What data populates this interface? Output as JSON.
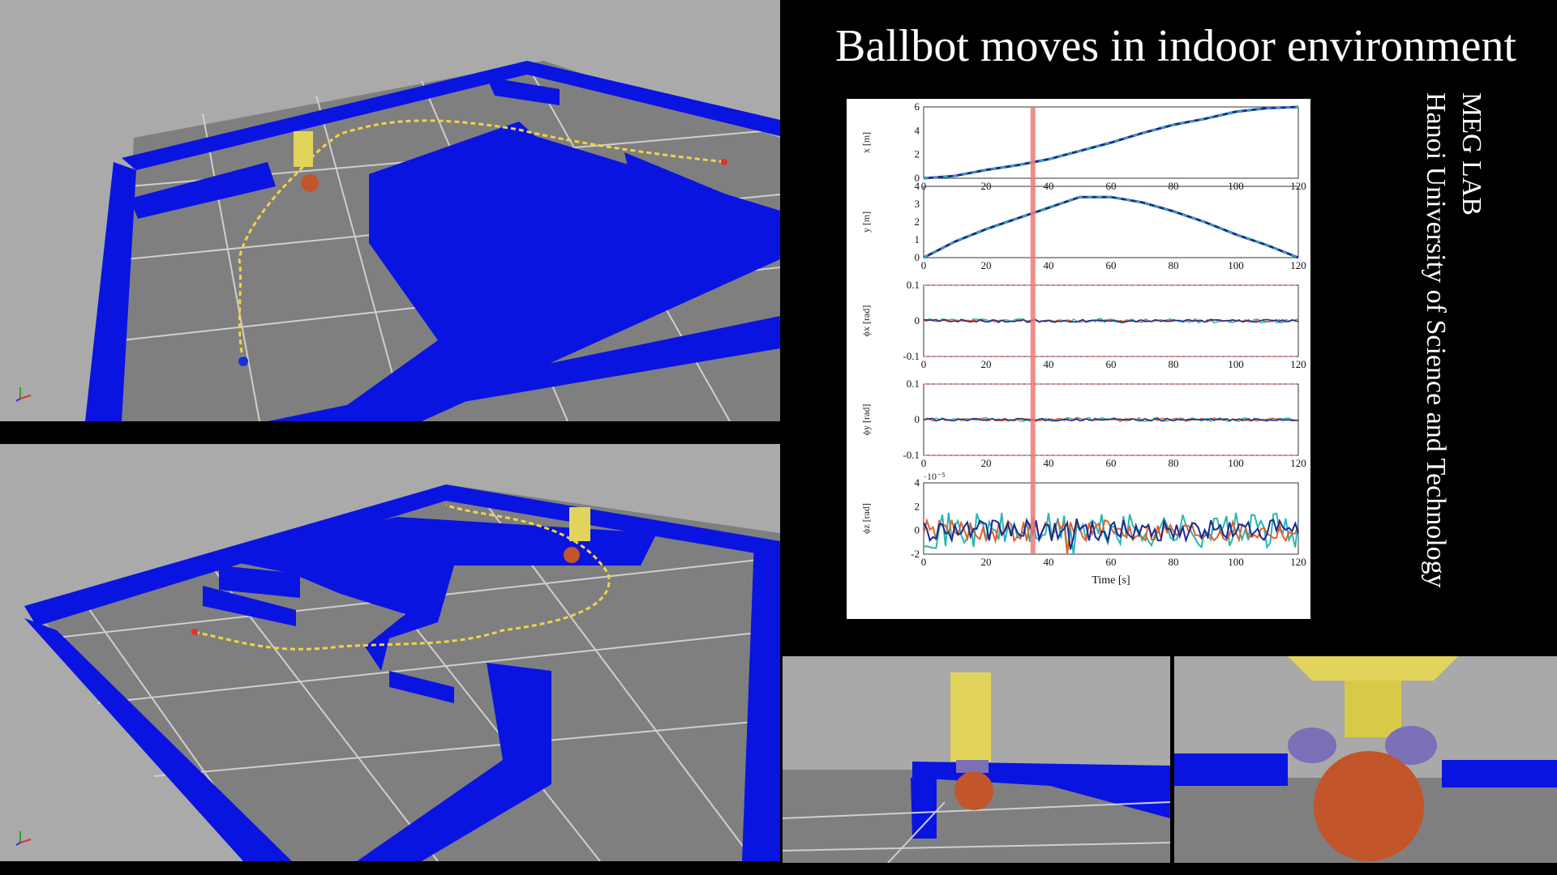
{
  "title": "Ballbot moves in indoor environment",
  "side_text": {
    "lab": "MEG LAB",
    "university": "Hanoi University of Science and Technology"
  },
  "colors": {
    "wall": "#0a14e0",
    "floor": "#808080",
    "sky": "#a9a9a9",
    "trajectory": "#f2d34a",
    "ball": "#c2552a",
    "robot": "#e2d45a",
    "highlight": "#f07878"
  },
  "chart_data": [
    {
      "type": "line",
      "ylabel": "x [m]",
      "xlim": [
        0,
        120
      ],
      "ylim": [
        0,
        6
      ],
      "yticks": [
        0,
        2,
        4,
        6
      ],
      "xticks": [
        0,
        20,
        40,
        60,
        80,
        100,
        120
      ],
      "x": [
        0,
        10,
        20,
        30,
        40,
        50,
        60,
        70,
        80,
        90,
        100,
        110,
        120
      ],
      "values": [
        0,
        0.2,
        0.7,
        1.1,
        1.6,
        2.3,
        3.0,
        3.8,
        4.5,
        5.0,
        5.6,
        5.9,
        6.0
      ]
    },
    {
      "type": "line",
      "ylabel": "y [m]",
      "xlim": [
        0,
        120
      ],
      "ylim": [
        0,
        4
      ],
      "yticks": [
        0,
        1,
        2,
        3,
        4
      ],
      "xticks": [
        0,
        20,
        40,
        60,
        80,
        100,
        120
      ],
      "x": [
        0,
        10,
        20,
        30,
        40,
        50,
        60,
        70,
        80,
        90,
        100,
        110,
        120
      ],
      "values": [
        0,
        0.9,
        1.6,
        2.2,
        2.8,
        3.4,
        3.4,
        3.1,
        2.6,
        2.0,
        1.3,
        0.7,
        0.0
      ]
    },
    {
      "type": "line",
      "ylabel": "ϕx [rad]",
      "xlim": [
        0,
        120
      ],
      "ylim": [
        -0.1,
        0.1
      ],
      "yticks": [
        -0.1,
        0,
        0.1
      ],
      "xticks": [
        0,
        20,
        40,
        60,
        80,
        100,
        120
      ],
      "limits": [
        -0.1,
        0.1
      ]
    },
    {
      "type": "line",
      "ylabel": "ϕy [rad]",
      "xlim": [
        0,
        120
      ],
      "ylim": [
        -0.1,
        0.1
      ],
      "yticks": [
        -0.1,
        0,
        0.1
      ],
      "xticks": [
        0,
        20,
        40,
        60,
        80,
        100,
        120
      ],
      "limits": [
        -0.1,
        0.1
      ]
    },
    {
      "type": "line",
      "ylabel": "ϕz [rad]",
      "xlim": [
        0,
        120
      ],
      "ylim": [
        -2,
        4
      ],
      "yticks": [
        -2,
        0,
        2,
        4
      ],
      "xticks": [
        0,
        20,
        40,
        60,
        80,
        100,
        120
      ],
      "scale": "·10⁻⁵",
      "xlabel": "Time [s]"
    }
  ],
  "time_marker": 35
}
